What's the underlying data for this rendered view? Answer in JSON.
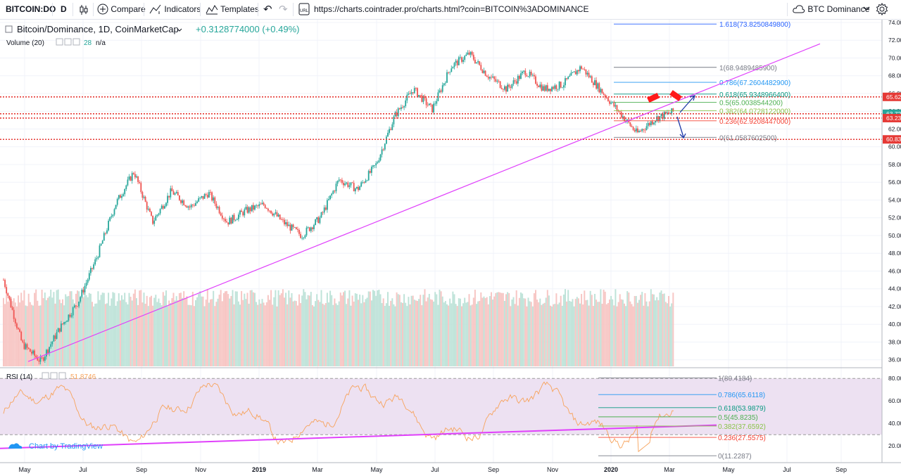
{
  "toolbar": {
    "symbol": "BITCOIN:DO",
    "interval": "D",
    "compare_label": "Compare",
    "indicators_label": "Indicators",
    "templates_label": "Templates",
    "url": "https://charts.cointrader.pro/charts.html?coin=BITCOIN%3ADOMINANCE",
    "layout_name": "BTC Dominance"
  },
  "legend": {
    "title": "Bitcoin/Dominance, 1D, CoinMarketCap",
    "change": "+0.3128774000 (+0.49%)",
    "volume_label": "Volume (20)",
    "volume_value": "28",
    "volume_na": "n/a",
    "rsi_label": "RSI (14)",
    "rsi_value": "51.8746"
  },
  "watermark": "Chart by TradingView",
  "colors": {
    "up": "#26a69a",
    "down": "#ef5350",
    "trendline": "#e040fb",
    "rsi_line": "#f7a35c",
    "rsi_band": "#ede1f2",
    "red_level": "#e53935",
    "arrow": "#1e3aa8"
  },
  "chart_data": [
    {
      "type": "candlestick",
      "x_axis_labels": [
        "May",
        "Jul",
        "Sep",
        "Nov",
        "2019",
        "Mar",
        "May",
        "Jul",
        "Sep",
        "Nov",
        "2020",
        "Mar",
        "May",
        "Jul",
        "Sep"
      ],
      "y_ticks": [
        36,
        38,
        40,
        42,
        44,
        46,
        48,
        50,
        52,
        54,
        56,
        58,
        60,
        62,
        64,
        66,
        68,
        70,
        72,
        74
      ],
      "ylim": [
        35,
        74.5
      ],
      "close_path": [
        [
          0,
          45
        ],
        [
          1,
          37.8
        ],
        [
          2,
          35.8
        ],
        [
          3,
          39.5
        ],
        [
          4,
          42.5
        ],
        [
          5,
          47.5
        ],
        [
          6,
          53.5
        ],
        [
          7,
          57.2
        ],
        [
          8,
          51.5
        ],
        [
          9,
          55
        ],
        [
          10,
          53.2
        ],
        [
          11,
          54.8
        ],
        [
          12,
          51.5
        ],
        [
          13,
          52.8
        ],
        [
          14,
          53.5
        ],
        [
          15,
          51.5
        ],
        [
          16,
          50
        ],
        [
          17,
          52
        ],
        [
          18,
          56.3
        ],
        [
          19,
          55.2
        ],
        [
          20,
          58
        ],
        [
          21,
          63.5
        ],
        [
          22,
          66.5
        ],
        [
          23,
          64.2
        ],
        [
          24,
          69
        ],
        [
          25,
          70.5
        ],
        [
          26,
          68
        ],
        [
          27,
          66.5
        ],
        [
          28,
          68.5
        ],
        [
          29,
          66.5
        ],
        [
          30,
          67
        ],
        [
          31,
          69
        ],
        [
          32,
          66.5
        ],
        [
          33,
          64
        ],
        [
          34,
          61.5
        ],
        [
          35,
          63.2
        ],
        [
          36,
          64
        ]
      ],
      "volume_label": "Volume (20)",
      "fib_levels": [
        {
          "ratio": "1.618",
          "value": 73.82508498
        },
        {
          "ratio": "1",
          "value": 68.94894859
        },
        {
          "ratio": "0.786",
          "value": 67.26044829
        },
        {
          "ratio": "0.618",
          "value": 65.93489664
        },
        {
          "ratio": "0.5",
          "value": 65.00385442
        },
        {
          "ratio": "0.382",
          "value": 64.0728122
        },
        {
          "ratio": "0.236",
          "value": 62.9208447
        },
        {
          "ratio": "0",
          "value": 61.05876025
        }
      ],
      "fib_texts": [
        "1.618(73.8250849800)",
        "1(68.9489485900)",
        "0.786(67.2604482900)",
        "0.618(65.9348966400)",
        "0.5(65.0038544200)",
        "0.382(64.0728122000)",
        "0.236(62.9208447000)",
        "0(61.0587602500)"
      ],
      "horizontal_levels": [
        65.62,
        63.72,
        63.23,
        60.83
      ],
      "price_tags": [
        "65.62",
        "63.72",
        "63.23",
        "60.83"
      ]
    },
    {
      "type": "line",
      "title": "RSI (14)",
      "y_ticks": [
        20,
        40,
        60,
        80
      ],
      "ylim": [
        7,
        87
      ],
      "bands": [
        30,
        80
      ],
      "trendline": [
        [
          0,
          17.8
        ],
        [
          48,
          38.5
        ]
      ],
      "fib_levels": [
        {
          "ratio": "1",
          "value": 80.4184
        },
        {
          "ratio": "0.786",
          "value": 65.6118
        },
        {
          "ratio": "0.618",
          "value": 53.9879
        },
        {
          "ratio": "0.5",
          "value": 45.8235
        },
        {
          "ratio": "0.382",
          "value": 37.6592
        },
        {
          "ratio": "0.236",
          "value": 27.5575
        },
        {
          "ratio": "0",
          "value": 11.2287
        }
      ],
      "fib_texts": [
        "1(80.4184)",
        "0.786(65.6118)",
        "0.618(53.9879)",
        "0.5(45.8235)",
        "0.382(37.6592)",
        "0.236(27.5575)",
        "0(11.2287)"
      ]
    }
  ]
}
